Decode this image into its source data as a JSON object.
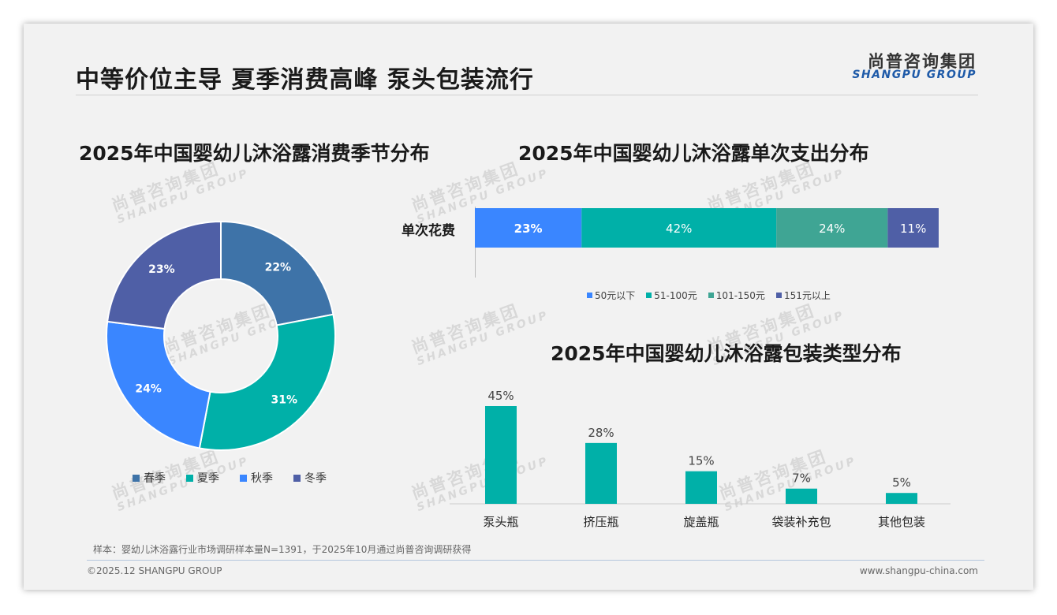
{
  "header": {
    "title": "中等价位主导 夏季消费高峰 泵头包装流行",
    "logo_cn": "尚普咨询集团",
    "logo_en": "SHANGPU GROUP"
  },
  "watermark": {
    "cn": "尚普咨询集团",
    "en": "SHANGPU GROUP"
  },
  "footer": {
    "note": "样本：婴幼儿沐浴露行业市场调研样本量N=1391，于2025年10月通过尚普咨询调研获得",
    "copyright": "©2025.12 SHANGPU GROUP",
    "website": "www.shangpu-china.com"
  },
  "chart_data": [
    {
      "type": "pie",
      "title": "2025年中国婴幼儿沐浴露消费季节分布",
      "categories": [
        "春季",
        "夏季",
        "秋季",
        "冬季"
      ],
      "values": [
        22,
        31,
        24,
        23
      ],
      "labels": [
        "22%",
        "31%",
        "24%",
        "23%"
      ],
      "colors": [
        "#3e73a8",
        "#00b0a8",
        "#3a86ff",
        "#4f5fa6"
      ],
      "legend": "bottom"
    },
    {
      "type": "bar",
      "orientation": "horizontal-stacked",
      "title": "2025年中国婴幼儿沐浴露单次支出分布",
      "categories": [
        "单次花费"
      ],
      "series": [
        {
          "name": "50元以下",
          "values": [
            23
          ],
          "label": "23%",
          "color": "#3a86ff"
        },
        {
          "name": "51-100元",
          "values": [
            42
          ],
          "label": "42%",
          "color": "#00b0a8"
        },
        {
          "name": "101-150元",
          "values": [
            24
          ],
          "label": "24%",
          "color": "#3fa594"
        },
        {
          "name": "151元以上",
          "values": [
            11
          ],
          "label": "11%",
          "color": "#4f5fa6"
        }
      ],
      "legend": "bottom"
    },
    {
      "type": "bar",
      "title": "2025年中国婴幼儿沐浴露包装类型分布",
      "categories": [
        "泵头瓶",
        "挤压瓶",
        "旋盖瓶",
        "袋装补充包",
        "其他包装"
      ],
      "values": [
        45,
        28,
        15,
        7,
        5
      ],
      "labels": [
        "45%",
        "28%",
        "15%",
        "7%",
        "5%"
      ],
      "color": "#00b0a8"
    }
  ]
}
